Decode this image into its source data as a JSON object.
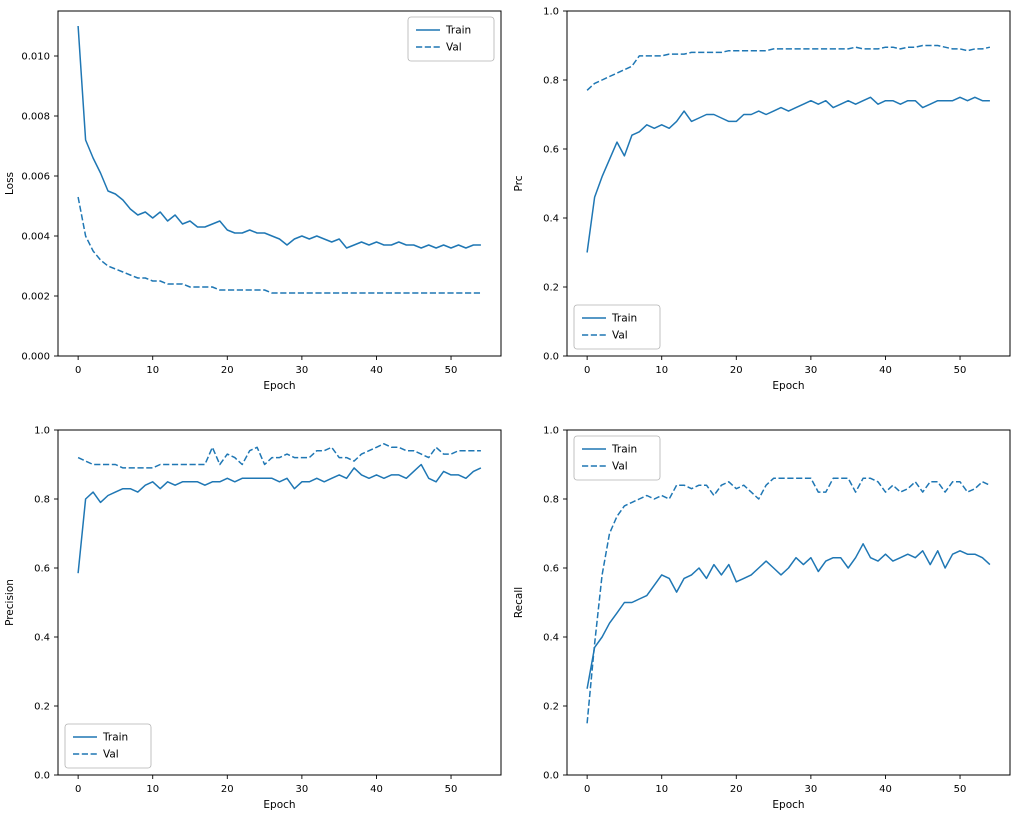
{
  "figure": {
    "background": "#ffffff",
    "axis_color": "#000000"
  },
  "chart_data": {
    "type": "line",
    "color": "#1f77b4",
    "legend_labels": [
      "Train",
      "Val"
    ],
    "epochs": [
      0,
      1,
      2,
      3,
      4,
      5,
      6,
      7,
      8,
      9,
      10,
      11,
      12,
      13,
      14,
      15,
      16,
      17,
      18,
      19,
      20,
      21,
      22,
      23,
      24,
      25,
      26,
      27,
      28,
      29,
      30,
      31,
      32,
      33,
      34,
      35,
      36,
      37,
      38,
      39,
      40,
      41,
      42,
      43,
      44,
      45,
      46,
      47,
      48,
      49,
      50,
      51,
      52,
      53,
      54
    ],
    "charts": [
      {
        "id": "loss",
        "title": "",
        "xlabel": "Epoch",
        "ylabel": "Loss",
        "xlim": [
          -2.7,
          56.7
        ],
        "ylim": [
          0,
          0.0115
        ],
        "xticks": [
          0,
          10,
          20,
          30,
          40,
          50
        ],
        "xtick_labels": [
          "0",
          "10",
          "20",
          "30",
          "40",
          "50"
        ],
        "yticks": [
          0,
          0.002,
          0.004,
          0.006,
          0.008,
          0.01
        ],
        "ytick_labels": [
          "0.000",
          "0.002",
          "0.004",
          "0.006",
          "0.008",
          "0.010"
        ],
        "legend": {
          "loc": "upper-right",
          "entries": [
            "Train",
            "Val"
          ]
        },
        "series": [
          {
            "name": "Train",
            "style": "solid",
            "values": [
              0.011,
              0.0072,
              0.0066,
              0.0061,
              0.0055,
              0.0054,
              0.0052,
              0.0049,
              0.0047,
              0.0048,
              0.0046,
              0.0048,
              0.0045,
              0.0047,
              0.0044,
              0.0045,
              0.0043,
              0.0043,
              0.0044,
              0.0045,
              0.0042,
              0.0041,
              0.0041,
              0.0042,
              0.0041,
              0.0041,
              0.004,
              0.0039,
              0.0037,
              0.0039,
              0.004,
              0.0039,
              0.004,
              0.0039,
              0.0038,
              0.0039,
              0.0036,
              0.0037,
              0.0038,
              0.0037,
              0.0038,
              0.0037,
              0.0037,
              0.0038,
              0.0037,
              0.0037,
              0.0036,
              0.0037,
              0.0036,
              0.0037,
              0.0036,
              0.0037,
              0.0036,
              0.0037,
              0.0037
            ]
          },
          {
            "name": "Val",
            "style": "dashed",
            "values": [
              0.0053,
              0.004,
              0.0035,
              0.0032,
              0.003,
              0.0029,
              0.0028,
              0.0027,
              0.0026,
              0.0026,
              0.0025,
              0.0025,
              0.0024,
              0.0024,
              0.0024,
              0.0023,
              0.0023,
              0.0023,
              0.0023,
              0.0022,
              0.0022,
              0.0022,
              0.0022,
              0.0022,
              0.0022,
              0.0022,
              0.0021,
              0.0021,
              0.0021,
              0.0021,
              0.0021,
              0.0021,
              0.0021,
              0.0021,
              0.0021,
              0.0021,
              0.0021,
              0.0021,
              0.0021,
              0.0021,
              0.0021,
              0.0021,
              0.0021,
              0.0021,
              0.0021,
              0.0021,
              0.0021,
              0.0021,
              0.0021,
              0.0021,
              0.0021,
              0.0021,
              0.0021,
              0.0021,
              0.0021
            ]
          }
        ]
      },
      {
        "id": "prc",
        "title": "",
        "xlabel": "Epoch",
        "ylabel": "Prc",
        "xlim": [
          -2.7,
          56.7
        ],
        "ylim": [
          0,
          1.0
        ],
        "xticks": [
          0,
          10,
          20,
          30,
          40,
          50
        ],
        "xtick_labels": [
          "0",
          "10",
          "20",
          "30",
          "40",
          "50"
        ],
        "yticks": [
          0,
          0.2,
          0.4,
          0.6,
          0.8,
          1.0
        ],
        "ytick_labels": [
          "0.0",
          "0.2",
          "0.4",
          "0.6",
          "0.8",
          "1.0"
        ],
        "legend": {
          "loc": "lower-left",
          "entries": [
            "Train",
            "Val"
          ]
        },
        "series": [
          {
            "name": "Train",
            "style": "solid",
            "values": [
              0.3,
              0.46,
              0.52,
              0.57,
              0.62,
              0.58,
              0.64,
              0.65,
              0.67,
              0.66,
              0.67,
              0.66,
              0.68,
              0.71,
              0.68,
              0.69,
              0.7,
              0.7,
              0.69,
              0.68,
              0.68,
              0.7,
              0.7,
              0.71,
              0.7,
              0.71,
              0.72,
              0.71,
              0.72,
              0.73,
              0.74,
              0.73,
              0.74,
              0.72,
              0.73,
              0.74,
              0.73,
              0.74,
              0.75,
              0.73,
              0.74,
              0.74,
              0.73,
              0.74,
              0.74,
              0.72,
              0.73,
              0.74,
              0.74,
              0.74,
              0.75,
              0.74,
              0.75,
              0.74,
              0.74
            ]
          },
          {
            "name": "Val",
            "style": "dashed",
            "values": [
              0.77,
              0.79,
              0.8,
              0.81,
              0.82,
              0.83,
              0.84,
              0.87,
              0.87,
              0.87,
              0.87,
              0.875,
              0.875,
              0.875,
              0.88,
              0.88,
              0.88,
              0.88,
              0.88,
              0.885,
              0.885,
              0.885,
              0.885,
              0.885,
              0.885,
              0.89,
              0.89,
              0.89,
              0.89,
              0.89,
              0.89,
              0.89,
              0.89,
              0.89,
              0.89,
              0.89,
              0.895,
              0.89,
              0.89,
              0.89,
              0.895,
              0.895,
              0.89,
              0.895,
              0.895,
              0.9,
              0.9,
              0.9,
              0.895,
              0.89,
              0.89,
              0.885,
              0.89,
              0.89,
              0.895
            ]
          }
        ]
      },
      {
        "id": "precision",
        "title": "",
        "xlabel": "Epoch",
        "ylabel": "Precision",
        "xlim": [
          -2.7,
          56.7
        ],
        "ylim": [
          0,
          1.0
        ],
        "xticks": [
          0,
          10,
          20,
          30,
          40,
          50
        ],
        "xtick_labels": [
          "0",
          "10",
          "20",
          "30",
          "40",
          "50"
        ],
        "yticks": [
          0,
          0.2,
          0.4,
          0.6,
          0.8,
          1.0
        ],
        "ytick_labels": [
          "0.0",
          "0.2",
          "0.4",
          "0.6",
          "0.8",
          "1.0"
        ],
        "legend": {
          "loc": "lower-left",
          "entries": [
            "Train",
            "Val"
          ]
        },
        "series": [
          {
            "name": "Train",
            "style": "solid",
            "values": [
              0.585,
              0.8,
              0.82,
              0.79,
              0.81,
              0.82,
              0.83,
              0.83,
              0.82,
              0.84,
              0.85,
              0.83,
              0.85,
              0.84,
              0.85,
              0.85,
              0.85,
              0.84,
              0.85,
              0.85,
              0.86,
              0.85,
              0.86,
              0.86,
              0.86,
              0.86,
              0.86,
              0.85,
              0.86,
              0.83,
              0.85,
              0.85,
              0.86,
              0.85,
              0.86,
              0.87,
              0.86,
              0.89,
              0.87,
              0.86,
              0.87,
              0.86,
              0.87,
              0.87,
              0.86,
              0.88,
              0.9,
              0.86,
              0.85,
              0.88,
              0.87,
              0.87,
              0.86,
              0.88,
              0.89
            ]
          },
          {
            "name": "Val",
            "style": "dashed",
            "values": [
              0.92,
              0.91,
              0.9,
              0.9,
              0.9,
              0.9,
              0.89,
              0.89,
              0.89,
              0.89,
              0.89,
              0.9,
              0.9,
              0.9,
              0.9,
              0.9,
              0.9,
              0.9,
              0.95,
              0.9,
              0.93,
              0.92,
              0.9,
              0.94,
              0.95,
              0.9,
              0.92,
              0.92,
              0.93,
              0.92,
              0.92,
              0.92,
              0.94,
              0.94,
              0.95,
              0.92,
              0.92,
              0.91,
              0.93,
              0.94,
              0.95,
              0.96,
              0.95,
              0.95,
              0.94,
              0.94,
              0.93,
              0.92,
              0.95,
              0.93,
              0.93,
              0.94,
              0.94,
              0.94,
              0.94
            ]
          }
        ]
      },
      {
        "id": "recall",
        "title": "",
        "xlabel": "Epoch",
        "ylabel": "Recall",
        "xlim": [
          -2.7,
          56.7
        ],
        "ylim": [
          0,
          1.0
        ],
        "xticks": [
          0,
          10,
          20,
          30,
          40,
          50
        ],
        "xtick_labels": [
          "0",
          "10",
          "20",
          "30",
          "40",
          "50"
        ],
        "yticks": [
          0,
          0.2,
          0.4,
          0.6,
          0.8,
          1.0
        ],
        "ytick_labels": [
          "0.0",
          "0.2",
          "0.4",
          "0.6",
          "0.8",
          "1.0"
        ],
        "legend": {
          "loc": "upper-left",
          "entries": [
            "Train",
            "Val"
          ]
        },
        "series": [
          {
            "name": "Train",
            "style": "solid",
            "values": [
              0.25,
              0.37,
              0.4,
              0.44,
              0.47,
              0.5,
              0.5,
              0.51,
              0.52,
              0.55,
              0.58,
              0.57,
              0.53,
              0.57,
              0.58,
              0.6,
              0.57,
              0.61,
              0.58,
              0.61,
              0.56,
              0.57,
              0.58,
              0.6,
              0.62,
              0.6,
              0.58,
              0.6,
              0.63,
              0.61,
              0.63,
              0.59,
              0.62,
              0.63,
              0.63,
              0.6,
              0.63,
              0.67,
              0.63,
              0.62,
              0.64,
              0.62,
              0.63,
              0.64,
              0.63,
              0.65,
              0.61,
              0.65,
              0.6,
              0.64,
              0.65,
              0.64,
              0.64,
              0.63,
              0.61
            ]
          },
          {
            "name": "Val",
            "style": "dashed",
            "values": [
              0.15,
              0.38,
              0.58,
              0.7,
              0.75,
              0.78,
              0.79,
              0.8,
              0.81,
              0.8,
              0.81,
              0.8,
              0.84,
              0.84,
              0.83,
              0.84,
              0.84,
              0.81,
              0.84,
              0.85,
              0.83,
              0.84,
              0.82,
              0.8,
              0.84,
              0.86,
              0.86,
              0.86,
              0.86,
              0.86,
              0.86,
              0.82,
              0.82,
              0.86,
              0.86,
              0.86,
              0.82,
              0.86,
              0.86,
              0.85,
              0.82,
              0.84,
              0.82,
              0.83,
              0.85,
              0.82,
              0.85,
              0.85,
              0.82,
              0.85,
              0.85,
              0.82,
              0.83,
              0.85,
              0.84
            ]
          }
        ]
      }
    ]
  }
}
